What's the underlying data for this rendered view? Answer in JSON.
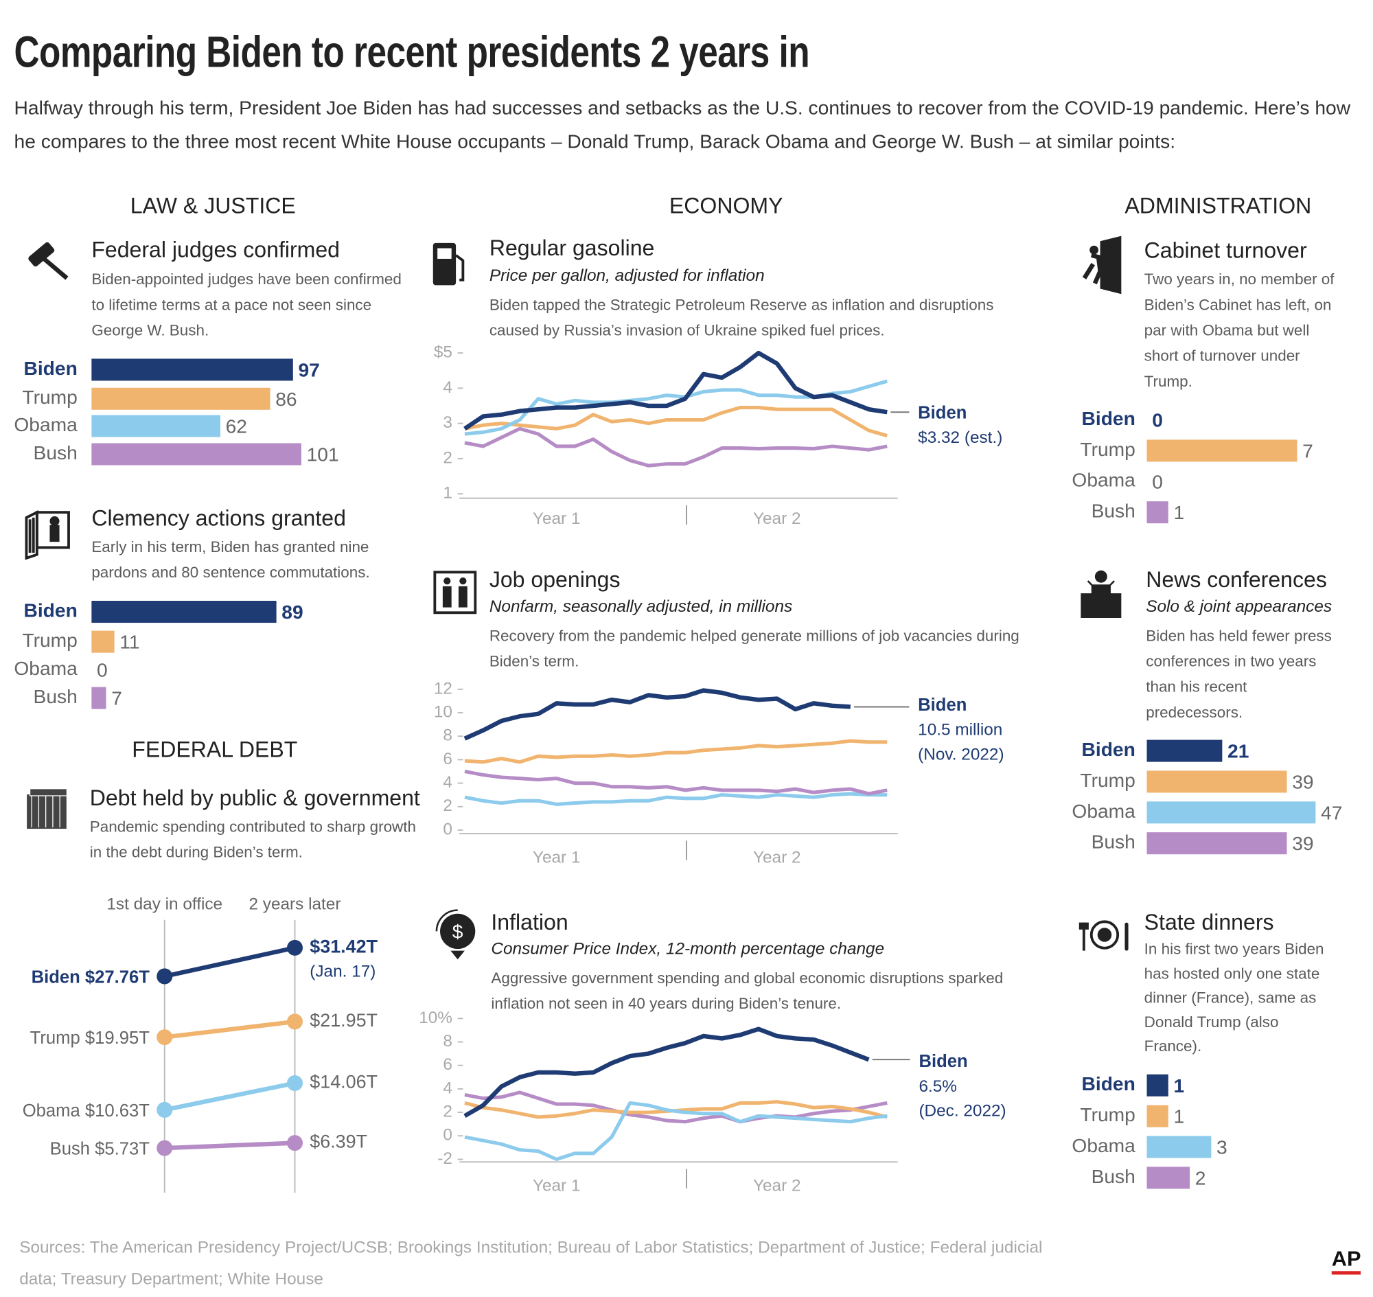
{
  "header": {
    "title": "Comparing Biden to recent presidents 2 years in",
    "subtitle": "Halfway through his term, President Joe Biden has had successes and setbacks as the U.S. continues to recover from the COVID-19 pandemic. Here’s how he compares to the three most recent White House occupants – Donald Trump, Barack Obama and George W. Bush – at similar points:"
  },
  "sections": [
    "LAW & JUSTICE",
    "ECONOMY",
    "ADMINISTRATION",
    "FEDERAL DEBT"
  ],
  "chart_data": [
    {
      "type": "bar",
      "title": "Federal judges confirmed",
      "description": "Biden-appointed judges have been confirmed to lifetime terms at a pace not seen since George W. Bush.",
      "categories": [
        "Biden",
        "Trump",
        "Obama",
        "Bush"
      ],
      "values": [
        97,
        86,
        62,
        101
      ],
      "colors": [
        "#1f3b73",
        "#f0b46e",
        "#8ccbec",
        "#b68cc6"
      ]
    },
    {
      "type": "bar",
      "title": "Clemency actions granted",
      "description": "Early in his term, Biden has granted nine pardons and 80 sentence commutations.",
      "categories": [
        "Biden",
        "Trump",
        "Obama",
        "Bush"
      ],
      "values": [
        89,
        11,
        0,
        7
      ],
      "colors": [
        "#1f3b73",
        "#f0b46e",
        "#8ccbec",
        "#b68cc6"
      ]
    },
    {
      "type": "slope",
      "title": "Debt held by public & government",
      "description": "Pandemic spending contributed to sharp growth in the debt during Biden’s term.",
      "categories": [
        "1st day in office",
        "2 years later"
      ],
      "ylim": [
        0,
        35
      ],
      "series": [
        {
          "name": "Biden",
          "color": "#1f3b73",
          "values": [
            27.76,
            31.42
          ],
          "value_labels": [
            "$27.76T",
            "$31.42T"
          ]
        },
        {
          "name": "Trump",
          "color": "#f0b46e",
          "values": [
            19.95,
            21.95
          ],
          "value_labels": [
            "$19.95T",
            "$21.95T"
          ]
        },
        {
          "name": "Obama",
          "color": "#8ccbec",
          "values": [
            10.63,
            14.06
          ],
          "value_labels": [
            "$10.63T",
            "$14.06T"
          ]
        },
        {
          "name": "Bush",
          "color": "#b68cc6",
          "values": [
            5.73,
            6.39
          ],
          "value_labels": [
            "$5.73T",
            "$6.39T"
          ]
        }
      ],
      "annotations": [
        "(Jan. 17)"
      ]
    },
    {
      "type": "line",
      "title": "Regular gasoline",
      "subtitle": "Price per gallon, adjusted for inflation",
      "description": "Biden tapped the Strategic Petroleum Reserve as inflation and disruptions caused by Russia’s invasion of Ukraine spiked fuel prices.",
      "categories": [
        null,
        null,
        null,
        null,
        null,
        "Year 1",
        null,
        null,
        null,
        null,
        null,
        null,
        null,
        null,
        null,
        null,
        null,
        "Year 2",
        null,
        null,
        null,
        null,
        null,
        null
      ],
      "ylim": [
        1,
        5
      ],
      "yticks": [
        1,
        2,
        3,
        4,
        {
          "value": 5,
          "label": "$5"
        }
      ],
      "series": [
        {
          "name": "Biden",
          "color": "#1f3b73",
          "values": [
            2.85,
            3.2,
            3.25,
            3.35,
            3.4,
            3.45,
            3.45,
            3.5,
            3.55,
            3.6,
            3.5,
            3.5,
            3.7,
            4.4,
            4.3,
            4.6,
            5.0,
            4.7,
            4.0,
            3.75,
            3.8,
            3.6,
            3.4,
            3.32
          ]
        },
        {
          "color": "#8ccbec",
          "values": [
            2.7,
            2.75,
            2.85,
            3.1,
            3.7,
            3.55,
            3.65,
            3.6,
            3.6,
            3.65,
            3.7,
            3.8,
            3.75,
            3.9,
            3.95,
            3.95,
            3.8,
            3.8,
            3.75,
            3.75,
            3.85,
            3.9,
            4.05,
            4.2
          ]
        },
        {
          "color": "#f0b46e",
          "values": [
            2.85,
            2.95,
            3.0,
            2.95,
            2.9,
            2.85,
            2.95,
            3.25,
            3.05,
            3.1,
            3.0,
            3.1,
            3.1,
            3.1,
            3.3,
            3.45,
            3.45,
            3.4,
            3.4,
            3.4,
            3.4,
            3.1,
            2.8,
            2.65
          ]
        },
        {
          "color": "#b68cc6",
          "values": [
            2.45,
            2.35,
            2.6,
            2.85,
            2.7,
            2.35,
            2.35,
            2.55,
            2.2,
            1.95,
            1.8,
            1.85,
            1.85,
            2.05,
            2.3,
            2.3,
            2.28,
            2.3,
            2.3,
            2.28,
            2.35,
            2.3,
            2.25,
            2.35
          ]
        }
      ],
      "annotations": [
        "$3.32 (est.)"
      ]
    },
    {
      "type": "line",
      "title": "Job openings",
      "subtitle": "Nonfarm, seasonally adjusted, in millions",
      "description": "Recovery from the pandemic helped generate millions of job vacancies during Biden’s term.",
      "categories": [
        null,
        null,
        null,
        null,
        null,
        "Year 1",
        null,
        null,
        null,
        null,
        null,
        null,
        null,
        null,
        null,
        null,
        null,
        "Year 2",
        null,
        null,
        null,
        null,
        null,
        null
      ],
      "ylim": [
        0,
        12
      ],
      "yticks": [
        0,
        2,
        4,
        6,
        8,
        10,
        12
      ],
      "series": [
        {
          "name": "Biden",
          "color": "#1f3b73",
          "values": [
            7.8,
            8.5,
            9.3,
            9.7,
            9.9,
            10.8,
            10.7,
            10.7,
            11.1,
            10.9,
            11.5,
            11.3,
            11.4,
            11.9,
            11.7,
            11.3,
            11.1,
            11.2,
            10.3,
            10.8,
            10.6,
            10.5,
            null,
            null
          ]
        },
        {
          "color": "#f0b46e",
          "values": [
            5.9,
            5.8,
            6.1,
            5.8,
            6.3,
            6.2,
            6.3,
            6.3,
            6.4,
            6.3,
            6.4,
            6.6,
            6.6,
            6.8,
            6.9,
            7.0,
            7.2,
            7.1,
            7.2,
            7.3,
            7.4,
            7.6,
            7.5,
            7.5
          ]
        },
        {
          "color": "#b68cc6",
          "values": [
            5.0,
            4.7,
            4.5,
            4.4,
            4.3,
            4.4,
            4.0,
            4.0,
            3.7,
            3.7,
            3.6,
            3.7,
            3.4,
            3.6,
            3.4,
            3.4,
            3.4,
            3.3,
            3.5,
            3.2,
            3.4,
            3.5,
            3.1,
            3.4
          ]
        },
        {
          "color": "#8ccbec",
          "values": [
            2.8,
            2.5,
            2.3,
            2.5,
            2.5,
            2.2,
            2.3,
            2.4,
            2.4,
            2.5,
            2.5,
            2.8,
            2.7,
            2.7,
            3.0,
            2.9,
            2.8,
            3.0,
            2.9,
            2.8,
            3.0,
            3.1,
            3.0,
            3.0
          ]
        }
      ],
      "annotations": [
        "10.5 million",
        "(Nov. 2022)"
      ]
    },
    {
      "type": "line",
      "title": "Inflation",
      "subtitle": "Consumer Price Index, 12-month percentage change",
      "description": "Aggressive government spending and global economic disruptions sparked inflation not seen in 40 years during Biden’s tenure.",
      "categories": [
        null,
        null,
        null,
        null,
        null,
        "Year 1",
        null,
        null,
        null,
        null,
        null,
        null,
        null,
        null,
        null,
        null,
        null,
        "Year 2",
        null,
        null,
        null,
        null,
        null,
        null
      ],
      "ylim": [
        -2,
        10
      ],
      "yticks": [
        -2,
        0,
        2,
        4,
        6,
        8,
        {
          "value": 10,
          "label": "10%"
        }
      ],
      "series": [
        {
          "name": "Biden",
          "color": "#1f3b73",
          "values": [
            1.7,
            2.6,
            4.2,
            5.0,
            5.4,
            5.4,
            5.3,
            5.4,
            6.2,
            6.8,
            7.0,
            7.5,
            7.9,
            8.5,
            8.3,
            8.6,
            9.1,
            8.5,
            8.3,
            8.2,
            7.7,
            7.1,
            6.5,
            null
          ]
        },
        {
          "color": "#8ccbec",
          "values": [
            -0.1,
            -0.4,
            -0.7,
            -1.2,
            -1.3,
            -2.0,
            -1.5,
            -1.5,
            -0.1,
            2.8,
            2.6,
            2.2,
            2.0,
            1.9,
            1.9,
            1.2,
            1.7,
            1.6,
            1.5,
            1.4,
            1.3,
            1.2,
            1.5,
            1.7
          ]
        },
        {
          "color": "#f0b46e",
          "values": [
            2.8,
            2.4,
            2.2,
            1.9,
            1.6,
            1.7,
            1.9,
            2.2,
            2.1,
            2.0,
            2.0,
            2.1,
            2.2,
            2.3,
            2.3,
            2.8,
            2.8,
            2.9,
            2.7,
            2.4,
            2.5,
            2.3,
            2.0,
            1.6
          ]
        },
        {
          "color": "#b68cc6",
          "values": [
            3.5,
            3.2,
            3.3,
            3.7,
            3.2,
            2.7,
            2.7,
            2.6,
            2.2,
            1.8,
            1.6,
            1.3,
            1.2,
            1.5,
            1.7,
            1.2,
            1.5,
            1.7,
            1.6,
            1.9,
            2.1,
            2.2,
            2.5,
            2.8
          ]
        }
      ],
      "annotations": [
        "6.5%",
        "(Dec. 2022)"
      ]
    },
    {
      "type": "bar",
      "title": "Cabinet turnover",
      "description": "Two years in, no member of Biden’s Cabinet has left, on par with Obama but well short of turnover under Trump.",
      "categories": [
        "Biden",
        "Trump",
        "Obama",
        "Bush"
      ],
      "values": [
        0,
        7,
        0,
        1
      ],
      "colors": [
        "#1f3b73",
        "#f0b46e",
        "#8ccbec",
        "#b68cc6"
      ]
    },
    {
      "type": "bar",
      "title": "News conferences",
      "subtitle": "Solo & joint appearances",
      "description": "Biden has held fewer press conferences in two years than his recent predecessors.",
      "categories": [
        "Biden",
        "Trump",
        "Obama",
        "Bush"
      ],
      "values": [
        21,
        39,
        47,
        39
      ],
      "colors": [
        "#1f3b73",
        "#f0b46e",
        "#8ccbec",
        "#b68cc6"
      ]
    },
    {
      "type": "bar",
      "title": "State dinners",
      "description": "In his first two years Biden has hosted only one state dinner (France), same as Donald Trump (also France).",
      "categories": [
        "Biden",
        "Trump",
        "Obama",
        "Bush"
      ],
      "values": [
        1,
        1,
        3,
        2
      ],
      "colors": [
        "#1f3b73",
        "#f0b46e",
        "#8ccbec",
        "#b68cc6"
      ]
    }
  ],
  "footer": {
    "source": "Sources: The American Presidency Project/UCSB; Brookings Institution; Bureau of Labor Statistics; Department of Justice; Federal judicial data; Treasury Department; White House",
    "credit": "AP"
  }
}
